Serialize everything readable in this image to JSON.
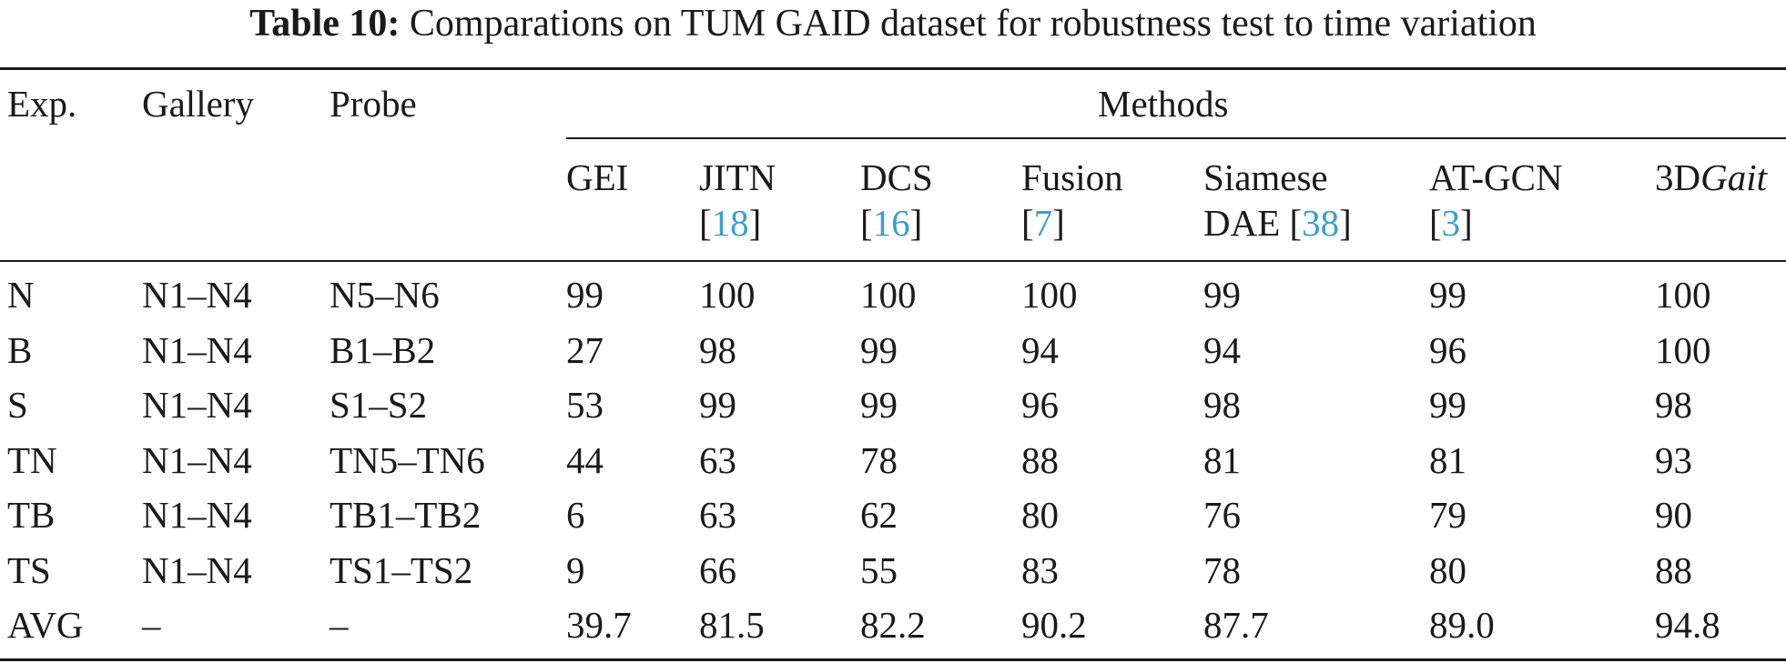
{
  "caption": {
    "label": "Table 10:",
    "text": "Comparations on TUM GAID dataset for robustness test to time variation"
  },
  "header": {
    "exp": "Exp.",
    "gallery": "Gallery",
    "probe": "Probe",
    "methods": "Methods",
    "cols": [
      {
        "l1": "GEI",
        "l2": "",
        "cite": "",
        "tail": ""
      },
      {
        "l1": "JITN",
        "l2": "[",
        "cite": "18",
        "tail": "]"
      },
      {
        "l1": "DCS",
        "l2": "[",
        "cite": "16",
        "tail": "]"
      },
      {
        "l1": "Fusion",
        "l2": "[",
        "cite": "7",
        "tail": "]"
      },
      {
        "l1": "Siamese",
        "l2": "DAE [",
        "cite": "38",
        "tail": "]"
      },
      {
        "l1": "AT-GCN",
        "l2": "[",
        "cite": "3",
        "tail": "]"
      },
      {
        "l1": "3D",
        "l1_italic": "Gait",
        "l2": "",
        "cite": "",
        "tail": ""
      }
    ]
  },
  "rows": [
    {
      "exp": "N",
      "gallery": "N1–N4",
      "probe": "N5–N6",
      "vals": [
        "99",
        "100",
        "100",
        "100",
        "99",
        "99",
        "100"
      ]
    },
    {
      "exp": "B",
      "gallery": "N1–N4",
      "probe": "B1–B2",
      "vals": [
        "27",
        "98",
        "99",
        "94",
        "94",
        "96",
        "100"
      ]
    },
    {
      "exp": "S",
      "gallery": "N1–N4",
      "probe": "S1–S2",
      "vals": [
        "53",
        "99",
        "99",
        "96",
        "98",
        "99",
        "98"
      ]
    },
    {
      "exp": "TN",
      "gallery": "N1–N4",
      "probe": "TN5–TN6",
      "vals": [
        "44",
        "63",
        "78",
        "88",
        "81",
        "81",
        "93"
      ]
    },
    {
      "exp": "TB",
      "gallery": "N1–N4",
      "probe": "TB1–TB2",
      "vals": [
        "6",
        "63",
        "62",
        "80",
        "76",
        "79",
        "90"
      ]
    },
    {
      "exp": "TS",
      "gallery": "N1–N4",
      "probe": "TS1–TS2",
      "vals": [
        "9",
        "66",
        "55",
        "83",
        "78",
        "80",
        "88"
      ]
    },
    {
      "exp": "AVG",
      "gallery": "–",
      "probe": "–",
      "vals": [
        "39.7",
        "81.5",
        "82.2",
        "90.2",
        "87.7",
        "89.0",
        "94.8"
      ]
    }
  ]
}
